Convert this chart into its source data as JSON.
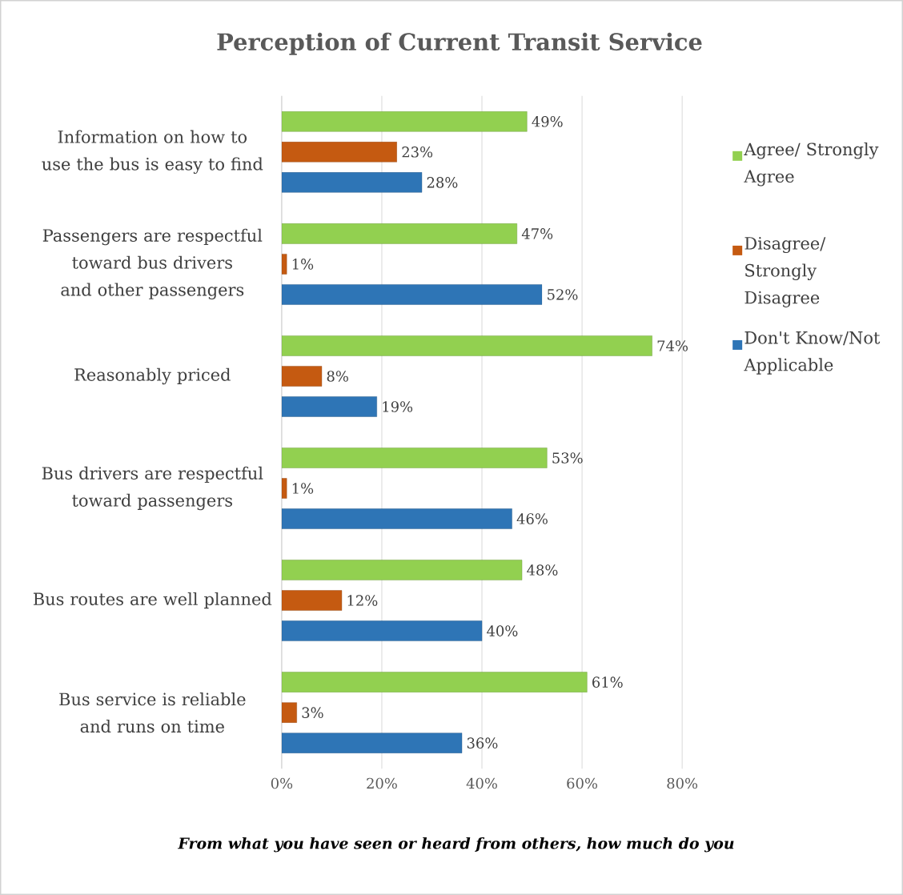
{
  "chart_data": {
    "type": "bar",
    "orientation": "horizontal",
    "title": "Perception of Current Transit Service",
    "xlabel": "From what you have seen or heard from others, how much do you",
    "categories": [
      "Information on how to use the bus is easy to find",
      "Passengers are respectful toward bus drivers and other passengers",
      "Reasonably priced",
      "Bus drivers are respectful toward passengers",
      "Bus routes are well planned",
      "Bus service is reliable and runs on time"
    ],
    "series": [
      {
        "name": "Agree/ Strongly Agree",
        "color": "#92d050",
        "values": [
          49,
          47,
          74,
          53,
          48,
          61
        ],
        "value_labels": [
          "49%",
          "47%",
          "74%",
          "53%",
          "48%",
          "61%"
        ]
      },
      {
        "name": "Disagree/ Strongly Disagree",
        "color": "#c55a11",
        "values": [
          23,
          1,
          8,
          1,
          12,
          3
        ],
        "value_labels": [
          "23%",
          "1%",
          "8%",
          "1%",
          "12%",
          "3%"
        ]
      },
      {
        "name": "Don't Know/Not Applicable",
        "color": "#2e75b6",
        "values": [
          28,
          52,
          19,
          46,
          40,
          36
        ],
        "value_labels": [
          "28%",
          "52%",
          "19%",
          "46%",
          "40%",
          "36%"
        ]
      }
    ],
    "xlim": [
      0,
      80
    ],
    "xticks": [
      {
        "value": 0,
        "label": "0%"
      },
      {
        "value": 20,
        "label": "20%"
      },
      {
        "value": 40,
        "label": "40%"
      },
      {
        "value": 60,
        "label": "60%"
      },
      {
        "value": 80,
        "label": "80%"
      }
    ],
    "grid": "x",
    "legend": "right"
  }
}
